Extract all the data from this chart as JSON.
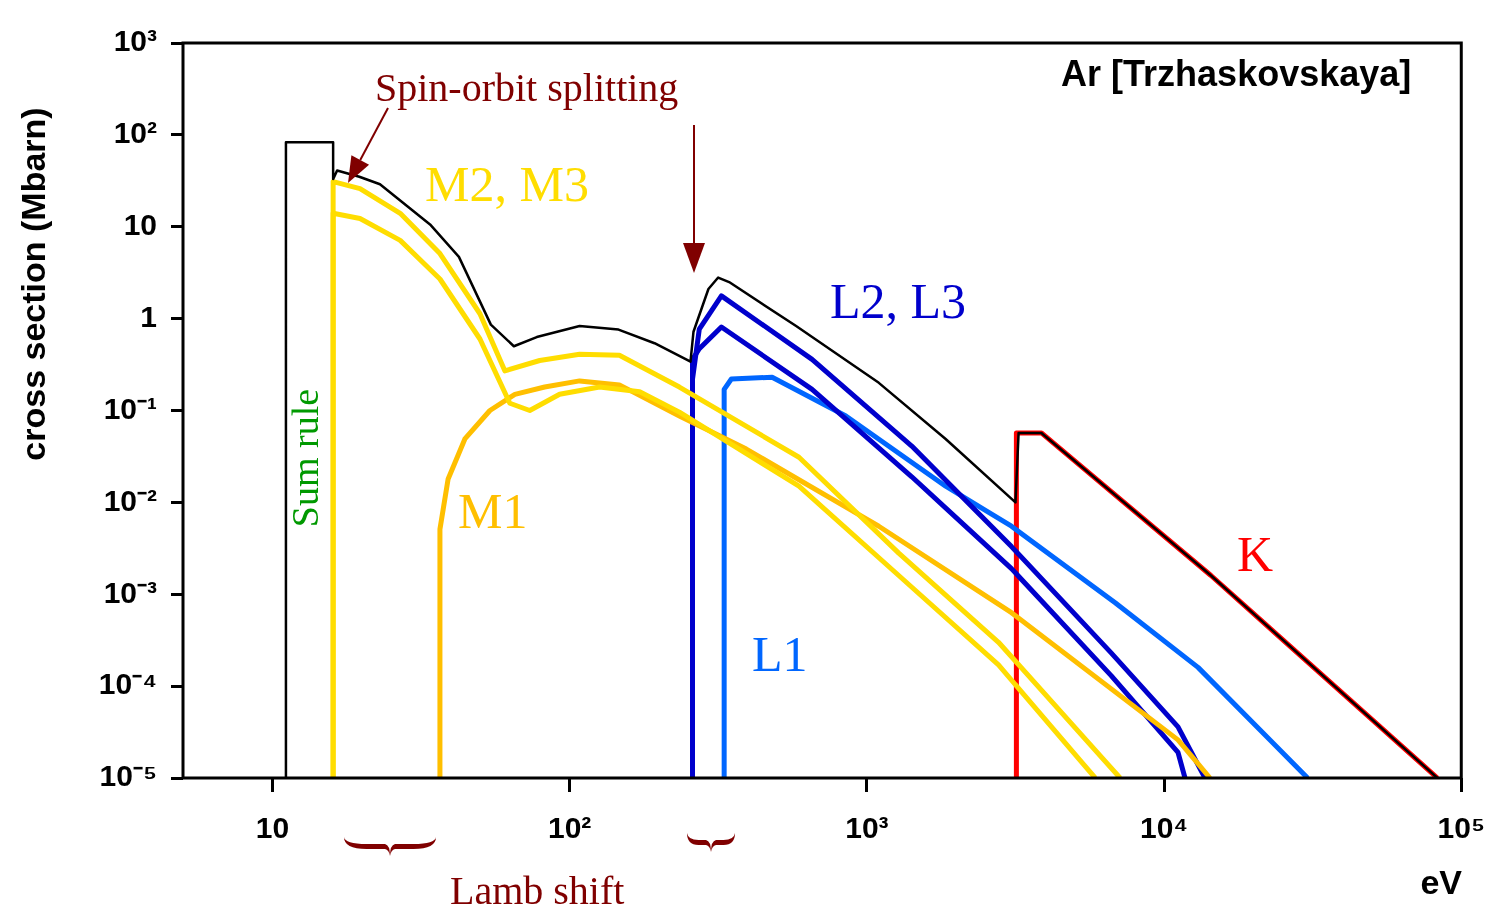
{
  "chart_data": {
    "type": "line",
    "title": "Ar [Trzhaskovskaya]",
    "xlabel": "eV",
    "ylabel": "cross section (Mbarn)",
    "log": "xy",
    "legend": false,
    "grid": false,
    "xlim": [
      5,
      100000
    ],
    "ylim": [
      1e-05,
      1000
    ],
    "xticks": [
      10,
      {
        "value": 100,
        "label": "10²"
      },
      {
        "value": 1000,
        "label": "10³"
      },
      {
        "value": 10000,
        "label": "10⁴"
      },
      {
        "value": 100000,
        "label": "10⁵"
      }
    ],
    "yticks": [
      {
        "value": 1e-05,
        "label": "10⁻⁵"
      },
      {
        "value": 0.0001,
        "label": "10⁻⁴"
      },
      {
        "value": 0.001,
        "label": "10⁻³"
      },
      {
        "value": 0.01,
        "label": "10⁻²"
      },
      {
        "value": 0.1,
        "label": "10⁻¹"
      },
      1,
      10,
      {
        "value": 100,
        "label": "10²"
      },
      {
        "value": 1000,
        "label": "10³"
      }
    ],
    "annotations": [
      {
        "text": "Spin-orbit splitting",
        "x": 18,
        "y": 30
      },
      "Lamb shift",
      "Sum rule"
    ],
    "series": [
      {
        "color": "#000000",
        "x": [
          11.1,
          11.1,
          16.0,
          16.0,
          16.5,
          19.6,
          23.0,
          33.9,
          42.4,
          54.3,
          64.9,
          77.5,
          108,
          146,
          193,
          255,
          261,
          293,
          316,
          344,
          578,
          1097,
          1841,
          3162,
          3240,
          3866,
          14380,
          83100
        ],
        "values": [
          1e-05,
          83,
          83,
          33,
          41,
          35,
          29,
          10.6,
          4.7,
          0.86,
          0.5,
          0.63,
          0.83,
          0.76,
          0.54,
          0.34,
          0.72,
          2.1,
          2.8,
          2.5,
          0.83,
          0.2,
          0.049,
          0.01,
          0.057,
          0.057,
          0.0016,
          1e-05
        ]
      },
      {
        "name": "M2, M3",
        "color": "#ffdd00",
        "x": [
          16.0,
          16.0,
          19.7,
          26.9,
          36.6,
          49.9,
          60.5,
          79.3,
          108,
          147,
          234,
          591,
          1280,
          2773,
          7115
        ],
        "values": [
          1e-05,
          31,
          26,
          14,
          5.1,
          1.13,
          0.27,
          0.35,
          0.41,
          0.4,
          0.18,
          0.031,
          0.0028,
          0.0003,
          1e-05
        ]
      },
      {
        "color": "#ffdd00",
        "x": [
          16.0,
          16.0,
          19.7,
          26.9,
          36.6,
          49.9,
          62.9,
          73.4,
          92.5,
          126,
          172,
          234,
          591,
          1280,
          2773,
          5866
        ],
        "values": [
          1e-05,
          14,
          12.3,
          7.1,
          2.7,
          0.6,
          0.12,
          0.1,
          0.15,
          0.18,
          0.16,
          0.096,
          0.015,
          0.0016,
          0.00017,
          1e-05
        ]
      },
      {
        "name": "M1",
        "color": "#ffbf00",
        "x": [
          36.6,
          36.6,
          39.0,
          44.4,
          53.9,
          65.4,
          82.4,
          108,
          147,
          234,
          393,
          1097,
          3066,
          11140,
          14270
        ],
        "values": [
          1e-05,
          0.0051,
          0.018,
          0.049,
          0.1,
          0.15,
          0.18,
          0.21,
          0.19,
          0.087,
          0.038,
          0.0055,
          0.00063,
          2.6e-05,
          1e-05
        ]
      },
      {
        "name": "L2, L3",
        "color": "#0000cc",
        "x": [
          259,
          259,
          273,
          324,
          654,
          1416,
          3066,
          6637,
          11140,
          13730
        ],
        "values": [
          1e-05,
          0.22,
          0.77,
          1.77,
          0.36,
          0.041,
          0.0033,
          0.00023,
          3.6e-05,
          1e-05
        ]
      },
      {
        "color": "#0000cc",
        "x": [
          259,
          259,
          273,
          324,
          654,
          1416,
          3066,
          6637,
          11140,
          11760
        ],
        "values": [
          1e-05,
          0.36,
          0.47,
          0.81,
          0.17,
          0.019,
          0.0019,
          0.00013,
          1.9e-05,
          1e-05
        ]
      },
      {
        "name": "L1",
        "color": "#0066ff",
        "x": [
          331,
          331,
          350,
          480,
          850,
          1841,
          3066,
          6847,
          13010,
          30410
        ],
        "values": [
          1e-05,
          0.17,
          0.22,
          0.23,
          0.087,
          0.015,
          0.0055,
          0.00081,
          0.00016,
          1e-05
        ]
      },
      {
        "name": "K",
        "color": "#ff0000",
        "x": [
          3185,
          3185,
          3866,
          14380,
          83100
        ],
        "values": [
          1e-05,
          0.057,
          0.057,
          0.0016,
          1e-05
        ]
      }
    ]
  }
}
